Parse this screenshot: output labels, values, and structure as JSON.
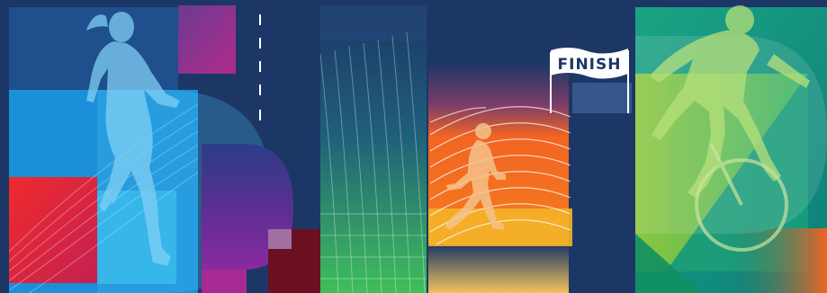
{
  "banner": {
    "finish_label": "FINISH"
  },
  "colors": {
    "background": "#1c3766",
    "blue": "#1b8fd8",
    "light_blue": "#4cc6f3",
    "red": "#e8252d",
    "magenta": "#a42a8c",
    "purple": "#5b2d8f",
    "dark_red": "#6b1020",
    "orange": "#f26522",
    "yellow": "#f4c430",
    "green": "#2bb673",
    "lime": "#8dc63f",
    "teal": "#0fa389"
  },
  "icons": [
    "female-runner-silhouette",
    "male-runner-silhouette",
    "cyclist-silhouette",
    "finish-banner"
  ]
}
